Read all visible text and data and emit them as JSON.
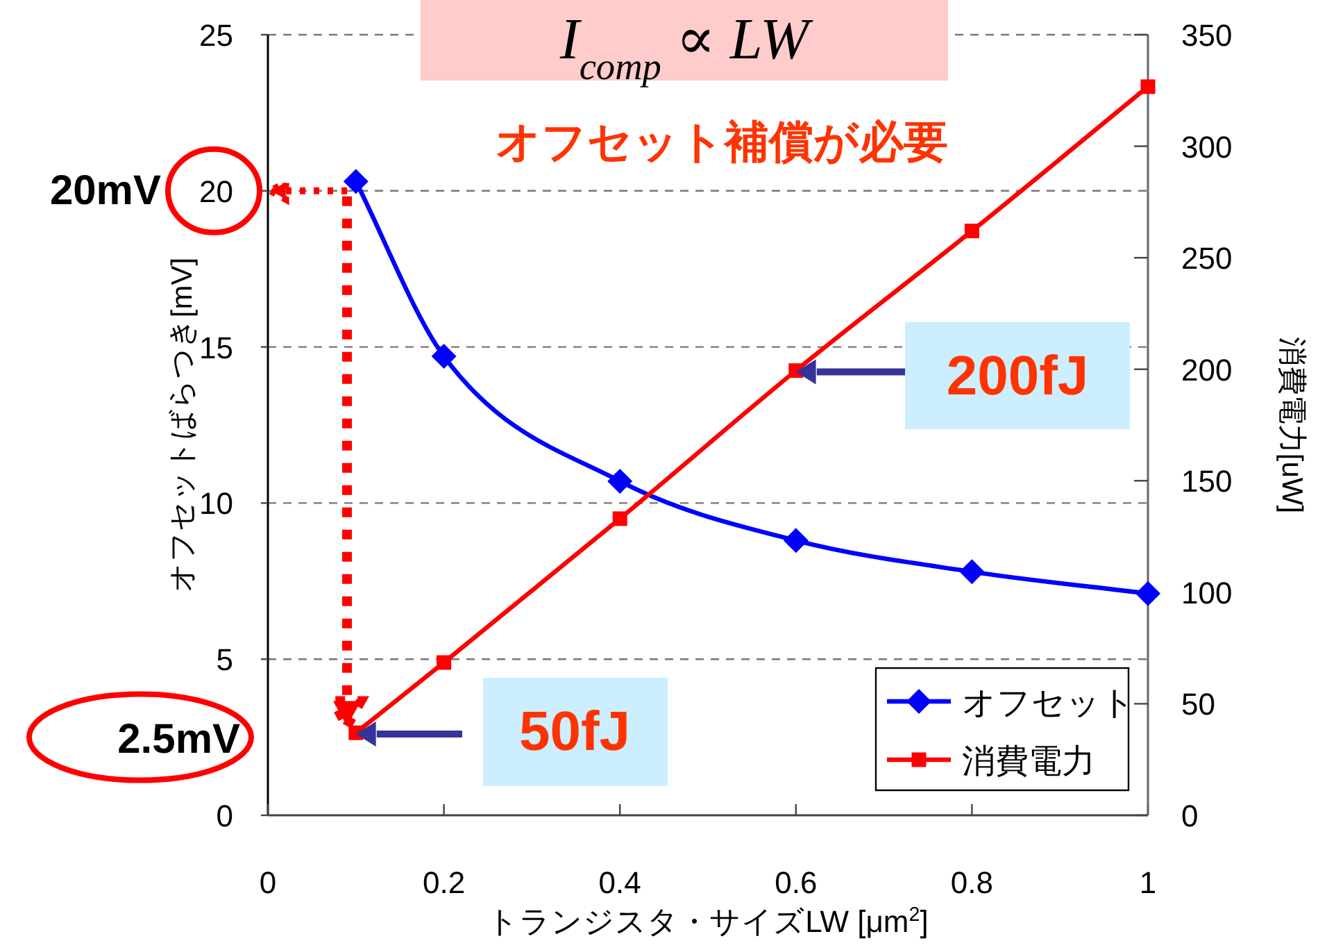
{
  "chart_data": {
    "type": "line",
    "xlabel": "トランジスタ・サイズLW [μm$^{2}$]",
    "ylabel": "オフセットばらつき[mV]",
    "y2label": "消費電力[uW]",
    "x": [
      0.1,
      0.2,
      0.4,
      0.6,
      0.8,
      1
    ],
    "series": [
      {
        "name": "オフセット",
        "color": "#0000ff",
        "marker": "diamond",
        "values": [
          20.3,
          14.7,
          10.7,
          8.8,
          7.8,
          7.1
        ]
      },
      {
        "name": "消費電力",
        "color": "#ff0000",
        "marker": "square",
        "axis": "y2",
        "values": [
          37,
          68.5,
          133,
          199.4,
          262,
          326.7
        ]
      }
    ],
    "xlim": [
      0,
      1
    ],
    "xticks": [
      0,
      0.2,
      0.4,
      0.6,
      0.8,
      1
    ],
    "ylim": [
      0,
      25
    ],
    "yticks": [
      0,
      5,
      10,
      15,
      20,
      25
    ],
    "y2lim": [
      0,
      350
    ],
    "y2ticks": [
      0,
      50,
      100,
      150,
      200,
      250,
      300,
      350
    ],
    "grid": "y",
    "legend": "bottom right",
    "line_style": "solid",
    "annotations": [
      "I$_{comp}$ ∝ LW",
      "オフセット補償が必要",
      "20mV",
      "2.5mV",
      {
        "text": "200fJ",
        "x": 0.6,
        "y": 14.2
      },
      {
        "text": "50fJ",
        "x": 0.1,
        "y": 2.6
      }
    ]
  }
}
